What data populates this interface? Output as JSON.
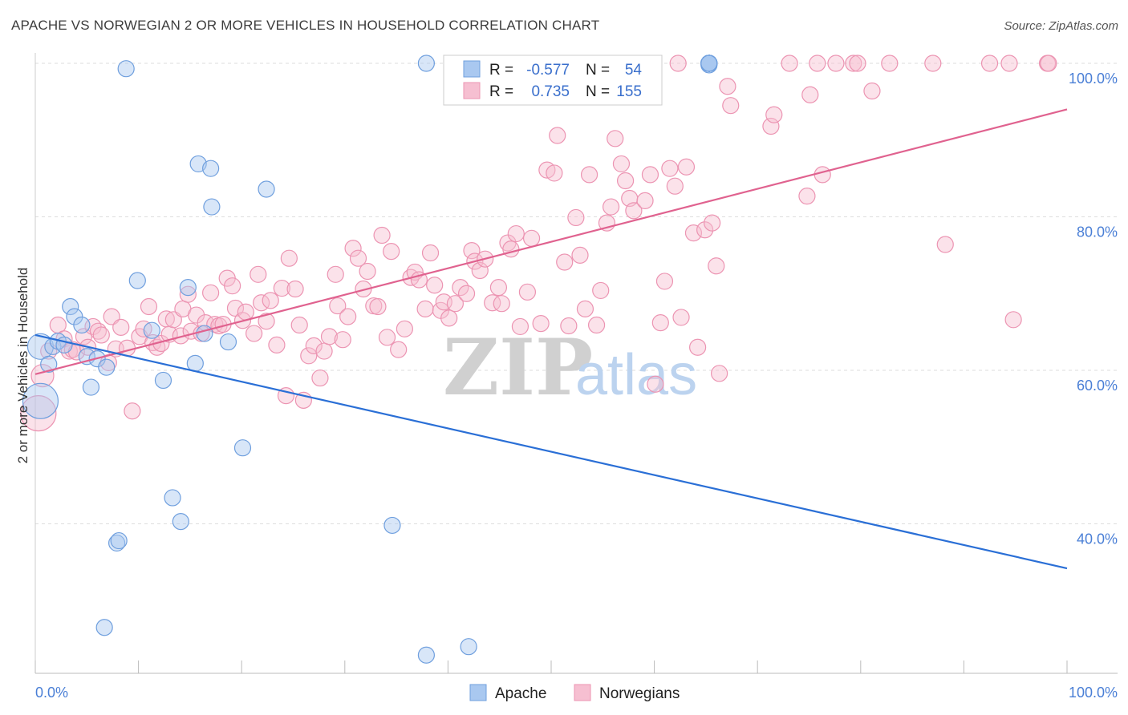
{
  "title": "APACHE VS NORWEGIAN 2 OR MORE VEHICLES IN HOUSEHOLD CORRELATION CHART",
  "source": "Source: ZipAtlas.com",
  "watermark": {
    "zip": "ZIP",
    "atlas": "atlas"
  },
  "colors": {
    "apache_fill": "#a9c8f0",
    "apache_stroke": "#6f9fde",
    "apache_line": "#2a6fd6",
    "norw_fill": "#f6bfd1",
    "norw_stroke": "#ec94b2",
    "norw_line": "#e0628f",
    "axis_blue": "#4a7fd6",
    "grid": "#dddddd"
  },
  "legend": {
    "rows": [
      {
        "r_label": "R =",
        "r_value": "-0.577",
        "n_label": "N =",
        "n_value": "54"
      },
      {
        "r_label": "R =",
        "r_value": "0.735",
        "n_label": "N =",
        "n_value": "155"
      }
    ]
  },
  "bottom_legend": {
    "apache": "Apache",
    "norwegians": "Norwegians"
  },
  "chart_data": {
    "type": "scatter",
    "title": "APACHE VS NORWEGIAN 2 OR MORE VEHICLES IN HOUSEHOLD CORRELATION CHART",
    "xlabel": "",
    "ylabel": "2 or more Vehicles in Household",
    "xlim": [
      0,
      100
    ],
    "ylim": [
      20,
      102
    ],
    "x_tick_labels": [
      "0.0%",
      "100.0%"
    ],
    "y_ticks": [
      40,
      60,
      80,
      100
    ],
    "y_tick_labels": [
      "40.0%",
      "60.0%",
      "80.0%",
      "100.0%"
    ],
    "grid": true,
    "legend_placement": "top-center",
    "series": [
      {
        "name": "Apache",
        "trend": {
          "x": [
            0,
            100
          ],
          "y": [
            64.6,
            34.2
          ]
        },
        "points": [
          [
            0.5,
            63.1,
            16
          ],
          [
            0.5,
            56.0,
            22
          ],
          [
            1.3,
            60.8,
            10
          ],
          [
            1.7,
            63.1,
            10
          ],
          [
            2.2,
            63.8,
            10
          ],
          [
            2.8,
            63.3,
            10
          ],
          [
            3.4,
            68.3,
            10
          ],
          [
            3.8,
            67.0,
            10
          ],
          [
            4.5,
            65.9,
            10
          ],
          [
            5.0,
            61.8,
            10
          ],
          [
            5.4,
            57.8,
            10
          ],
          [
            6.0,
            61.5,
            10
          ],
          [
            6.9,
            60.4,
            10
          ],
          [
            7.9,
            37.5,
            10
          ],
          [
            8.1,
            37.8,
            10
          ],
          [
            6.7,
            26.5,
            10
          ],
          [
            8.8,
            99.3,
            10
          ],
          [
            9.9,
            71.7,
            10
          ],
          [
            11.3,
            65.2,
            10
          ],
          [
            12.4,
            58.7,
            10
          ],
          [
            13.3,
            43.4,
            10
          ],
          [
            14.1,
            40.3,
            10
          ],
          [
            14.8,
            70.8,
            10
          ],
          [
            15.5,
            60.9,
            10
          ],
          [
            15.8,
            86.9,
            10
          ],
          [
            16.4,
            64.8,
            10
          ],
          [
            17.0,
            86.3,
            10
          ],
          [
            17.1,
            81.3,
            10
          ],
          [
            18.7,
            63.7,
            10
          ],
          [
            20.1,
            49.9,
            10
          ],
          [
            22.4,
            83.6,
            10
          ],
          [
            34.6,
            39.8,
            10
          ],
          [
            37.9,
            100.0,
            10
          ],
          [
            37.9,
            22.9,
            10
          ],
          [
            42.0,
            24.0,
            10
          ],
          [
            65.3,
            99.8,
            10
          ],
          [
            65.3,
            100.0,
            10
          ],
          [
            65.3,
            100.0,
            10
          ],
          [
            65.3,
            100.0,
            10
          ],
          [
            65.3,
            100.0,
            10
          ],
          [
            65.3,
            100.0,
            10
          ],
          [
            65.3,
            100.0,
            10
          ],
          [
            65.3,
            100.0,
            10
          ],
          [
            65.3,
            100.0,
            10
          ],
          [
            65.3,
            100.0,
            10
          ],
          [
            65.3,
            100.0,
            10
          ],
          [
            65.3,
            100.0,
            10
          ],
          [
            65.3,
            100.0,
            10
          ],
          [
            65.3,
            100.0,
            10
          ],
          [
            65.3,
            100.0,
            10
          ],
          [
            65.3,
            100.0,
            10
          ],
          [
            65.3,
            100.0,
            10
          ],
          [
            65.3,
            100.0,
            10
          ],
          [
            65.3,
            100.0,
            10
          ]
        ]
      },
      {
        "name": "Norwegians",
        "trend": {
          "x": [
            0,
            100
          ],
          "y": [
            59.5,
            94.0
          ]
        },
        "points": [
          [
            0.3,
            54.4,
            22
          ],
          [
            0.7,
            59.3,
            14
          ],
          [
            1.3,
            62.5,
            10
          ],
          [
            2.2,
            65.9,
            10
          ],
          [
            2.8,
            64.1,
            10
          ],
          [
            3.3,
            62.5,
            10
          ],
          [
            3.6,
            62.7,
            10
          ],
          [
            4.0,
            62.4,
            10
          ],
          [
            4.7,
            64.4,
            10
          ],
          [
            5.1,
            63.0,
            10
          ],
          [
            5.6,
            65.7,
            10
          ],
          [
            6.1,
            65.1,
            10
          ],
          [
            6.4,
            64.6,
            10
          ],
          [
            7.1,
            61.0,
            10
          ],
          [
            7.4,
            67.0,
            10
          ],
          [
            7.8,
            62.8,
            10
          ],
          [
            8.3,
            65.6,
            10
          ],
          [
            8.9,
            62.9,
            10
          ],
          [
            9.4,
            54.7,
            10
          ],
          [
            10.1,
            64.4,
            10
          ],
          [
            10.5,
            65.4,
            10
          ],
          [
            11.0,
            68.3,
            10
          ],
          [
            11.4,
            63.6,
            10
          ],
          [
            11.8,
            63.0,
            10
          ],
          [
            12.2,
            63.5,
            10
          ],
          [
            12.7,
            66.7,
            10
          ],
          [
            13.0,
            64.7,
            10
          ],
          [
            13.4,
            66.6,
            10
          ],
          [
            14.1,
            64.5,
            10
          ],
          [
            14.3,
            68.0,
            10
          ],
          [
            14.8,
            69.9,
            10
          ],
          [
            15.1,
            65.1,
            10
          ],
          [
            15.6,
            67.2,
            10
          ],
          [
            16.1,
            64.8,
            10
          ],
          [
            16.5,
            66.2,
            10
          ],
          [
            17.0,
            70.1,
            10
          ],
          [
            17.4,
            66.0,
            10
          ],
          [
            17.8,
            65.8,
            10
          ],
          [
            18.2,
            66.0,
            10
          ],
          [
            18.6,
            72.0,
            10
          ],
          [
            19.1,
            71.0,
            10
          ],
          [
            19.4,
            68.1,
            10
          ],
          [
            20.1,
            66.5,
            10
          ],
          [
            20.4,
            67.6,
            10
          ],
          [
            21.2,
            64.8,
            10
          ],
          [
            21.6,
            72.5,
            10
          ],
          [
            21.9,
            68.8,
            10
          ],
          [
            22.4,
            66.4,
            10
          ],
          [
            22.8,
            69.1,
            10
          ],
          [
            23.4,
            63.3,
            10
          ],
          [
            23.9,
            70.7,
            10
          ],
          [
            24.3,
            56.7,
            10
          ],
          [
            24.6,
            74.6,
            10
          ],
          [
            25.2,
            70.6,
            10
          ],
          [
            25.6,
            65.9,
            10
          ],
          [
            26.0,
            56.1,
            10
          ],
          [
            26.5,
            61.9,
            10
          ],
          [
            27.0,
            63.2,
            10
          ],
          [
            27.6,
            59.0,
            10
          ],
          [
            28.0,
            62.5,
            10
          ],
          [
            28.5,
            64.4,
            10
          ],
          [
            29.1,
            72.5,
            10
          ],
          [
            29.3,
            68.4,
            10
          ],
          [
            29.8,
            64.0,
            10
          ],
          [
            30.3,
            67.0,
            10
          ],
          [
            30.8,
            75.9,
            10
          ],
          [
            31.3,
            74.6,
            10
          ],
          [
            31.8,
            70.6,
            10
          ],
          [
            32.2,
            72.9,
            10
          ],
          [
            32.8,
            68.4,
            10
          ],
          [
            33.2,
            68.3,
            10
          ],
          [
            33.6,
            77.6,
            10
          ],
          [
            34.1,
            64.3,
            10
          ],
          [
            34.5,
            75.5,
            10
          ],
          [
            35.2,
            62.7,
            10
          ],
          [
            35.8,
            65.4,
            10
          ],
          [
            36.4,
            72.1,
            10
          ],
          [
            36.8,
            72.8,
            10
          ],
          [
            37.2,
            71.8,
            10
          ],
          [
            37.8,
            68.0,
            10
          ],
          [
            38.3,
            75.3,
            10
          ],
          [
            38.7,
            71.1,
            10
          ],
          [
            39.3,
            67.8,
            10
          ],
          [
            39.6,
            68.9,
            10
          ],
          [
            40.1,
            66.8,
            10
          ],
          [
            40.7,
            68.7,
            10
          ],
          [
            41.2,
            70.8,
            10
          ],
          [
            41.8,
            70.0,
            10
          ],
          [
            42.3,
            75.6,
            10
          ],
          [
            42.6,
            74.2,
            10
          ],
          [
            43.1,
            73.0,
            10
          ],
          [
            43.6,
            74.5,
            10
          ],
          [
            44.3,
            68.8,
            10
          ],
          [
            44.9,
            70.8,
            10
          ],
          [
            45.2,
            68.7,
            10
          ],
          [
            45.8,
            76.6,
            10
          ],
          [
            46.1,
            75.8,
            10
          ],
          [
            46.6,
            77.8,
            10
          ],
          [
            47.0,
            65.7,
            10
          ],
          [
            47.7,
            70.2,
            10
          ],
          [
            48.1,
            77.2,
            10
          ],
          [
            49.0,
            66.1,
            10
          ],
          [
            49.6,
            86.1,
            10
          ],
          [
            50.3,
            85.7,
            10
          ],
          [
            50.6,
            90.6,
            10
          ],
          [
            51.3,
            74.1,
            10
          ],
          [
            51.7,
            65.8,
            10
          ],
          [
            52.4,
            79.9,
            10
          ],
          [
            52.8,
            75.0,
            10
          ],
          [
            53.3,
            68.0,
            10
          ],
          [
            53.7,
            85.5,
            10
          ],
          [
            54.4,
            65.9,
            10
          ],
          [
            54.8,
            70.4,
            10
          ],
          [
            55.4,
            79.2,
            10
          ],
          [
            55.8,
            81.3,
            10
          ],
          [
            56.2,
            90.2,
            10
          ],
          [
            56.8,
            86.9,
            10
          ],
          [
            57.2,
            84.7,
            10
          ],
          [
            57.6,
            82.4,
            10
          ],
          [
            58.0,
            80.8,
            10
          ],
          [
            59.1,
            82.1,
            10
          ],
          [
            59.6,
            85.5,
            10
          ],
          [
            60.1,
            58.2,
            10
          ],
          [
            60.6,
            66.2,
            10
          ],
          [
            61.0,
            71.6,
            10
          ],
          [
            61.5,
            86.3,
            10
          ],
          [
            62.0,
            84.0,
            10
          ],
          [
            62.6,
            66.9,
            10
          ],
          [
            63.1,
            86.5,
            10
          ],
          [
            63.8,
            77.9,
            10
          ],
          [
            64.2,
            63.0,
            10
          ],
          [
            64.9,
            78.3,
            10
          ],
          [
            65.6,
            79.2,
            10
          ],
          [
            66.0,
            73.6,
            10
          ],
          [
            66.3,
            59.6,
            10
          ],
          [
            67.1,
            97.0,
            10
          ],
          [
            67.4,
            94.5,
            10
          ],
          [
            71.3,
            91.8,
            10
          ],
          [
            71.6,
            93.3,
            10
          ],
          [
            73.1,
            100.0,
            10
          ],
          [
            74.8,
            82.7,
            10
          ],
          [
            75.1,
            95.9,
            10
          ],
          [
            75.8,
            100.0,
            10
          ],
          [
            76.3,
            85.5,
            10
          ],
          [
            77.6,
            100.0,
            10
          ],
          [
            79.3,
            100.0,
            10
          ],
          [
            79.7,
            100.0,
            10
          ],
          [
            81.1,
            96.4,
            10
          ],
          [
            82.8,
            100.0,
            10
          ],
          [
            87.0,
            100.0,
            10
          ],
          [
            88.2,
            76.4,
            10
          ],
          [
            92.5,
            100.0,
            10
          ],
          [
            94.4,
            100.0,
            10
          ],
          [
            94.8,
            66.6,
            10
          ],
          [
            98.1,
            100.0,
            10
          ],
          [
            98.2,
            100.0,
            10
          ],
          [
            62.3,
            100.0,
            10
          ]
        ]
      }
    ]
  }
}
